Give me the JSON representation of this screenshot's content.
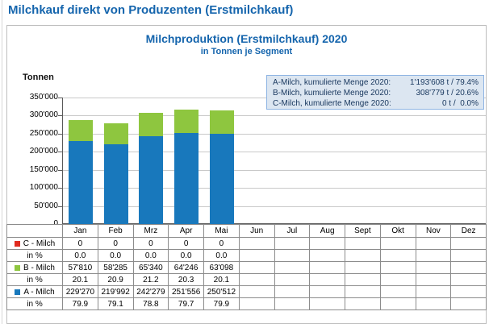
{
  "page": {
    "title": "Milchkauf direkt von Produzenten (Erstmilchkauf)"
  },
  "chart": {
    "title": "Milchproduktion (Erstmilchkauf) 2020",
    "subtitle": "in Tonnen je Segment",
    "y_axis_title": "Tonnen"
  },
  "summary_box": {
    "rows": [
      {
        "label": "A-Milch, kumulierte Menge 2020:",
        "value": "1'193'608 t / 79.4%"
      },
      {
        "label": "B-Milch, kumulierte Menge 2020:",
        "value": "308'779 t / 20.6%"
      },
      {
        "label": "C-Milch, kumulierte Menge 2020:",
        "value": "0 t /  0.0%"
      }
    ]
  },
  "chart_data": {
    "type": "bar",
    "stacked": true,
    "title": "Milchproduktion (Erstmilchkauf) 2020",
    "subtitle": "in Tonnen je Segment",
    "ylabel": "Tonnen",
    "ylim": [
      0,
      350000
    ],
    "ytick_step": 50000,
    "ytick_labels": [
      "0",
      "50'000",
      "100'000",
      "150'000",
      "200'000",
      "250'000",
      "300'000",
      "350'000"
    ],
    "grid": true,
    "legend_position": "data-table-below",
    "categories": [
      "Jan",
      "Feb",
      "Mrz",
      "Apr",
      "Mai",
      "Jun",
      "Jul",
      "Aug",
      "Sept",
      "Okt",
      "Nov",
      "Dez"
    ],
    "series": [
      {
        "name": "A - Milch",
        "color": "#1878bc",
        "values": [
          229270,
          219992,
          242279,
          251556,
          250512,
          null,
          null,
          null,
          null,
          null,
          null,
          null
        ]
      },
      {
        "name": "B - Milch",
        "color": "#8ec63f",
        "values": [
          57810,
          58285,
          65340,
          64246,
          63098,
          null,
          null,
          null,
          null,
          null,
          null,
          null
        ]
      },
      {
        "name": "C - Milch",
        "color": "#e02b20",
        "values": [
          0,
          0,
          0,
          0,
          0,
          null,
          null,
          null,
          null,
          null,
          null,
          null
        ]
      }
    ],
    "annotations": [
      "A-Milch, kumulierte Menge 2020: 1'193'608 t / 79.4%",
      "B-Milch, kumulierte Menge 2020: 308'779 t / 20.6%",
      "C-Milch, kumulierte Menge 2020: 0 t / 0.0%"
    ]
  },
  "table": {
    "columns": [
      "Jan",
      "Feb",
      "Mrz",
      "Apr",
      "Mai",
      "Jun",
      "Jul",
      "Aug",
      "Sept",
      "Okt",
      "Nov",
      "Dez"
    ],
    "rows": [
      {
        "label": "C - Milch",
        "swatch": "#e02b20",
        "cells": [
          "0",
          "0",
          "0",
          "0",
          "0",
          "",
          "",
          "",
          "",
          "",
          "",
          ""
        ]
      },
      {
        "label": "in %",
        "swatch": null,
        "cells": [
          "0.0",
          "0.0",
          "0.0",
          "0.0",
          "0.0",
          "",
          "",
          "",
          "",
          "",
          "",
          ""
        ]
      },
      {
        "label": "B - Milch",
        "swatch": "#8ec63f",
        "cells": [
          "57'810",
          "58'285",
          "65'340",
          "64'246",
          "63'098",
          "",
          "",
          "",
          "",
          "",
          "",
          ""
        ]
      },
      {
        "label": "in %",
        "swatch": null,
        "cells": [
          "20.1",
          "20.9",
          "21.2",
          "20.3",
          "20.1",
          "",
          "",
          "",
          "",
          "",
          "",
          ""
        ]
      },
      {
        "label": "A - Milch",
        "swatch": "#1878bc",
        "cells": [
          "229'270",
          "219'992",
          "242'279",
          "251'556",
          "250'512",
          "",
          "",
          "",
          "",
          "",
          "",
          ""
        ]
      },
      {
        "label": "in %",
        "swatch": null,
        "cells": [
          "79.9",
          "79.1",
          "78.8",
          "79.7",
          "79.9",
          "",
          "",
          "",
          "",
          "",
          "",
          ""
        ]
      }
    ]
  }
}
